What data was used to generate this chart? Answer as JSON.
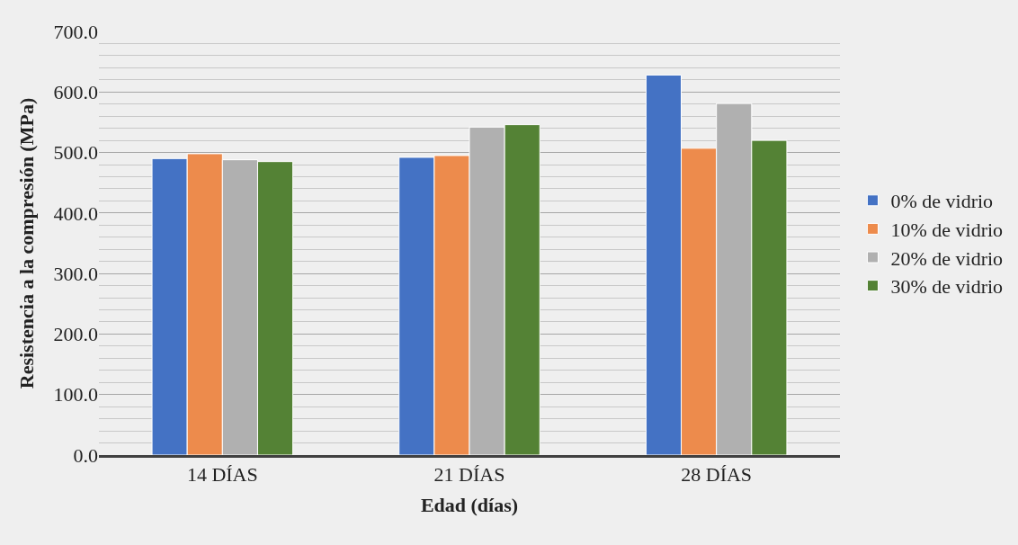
{
  "chart_data": {
    "type": "bar",
    "xlabel": "Edad (días)",
    "ylabel": "Resistencia a la compresión (MPa)",
    "categories": [
      "14 DÍAS",
      "21 DÍAS",
      "28 DÍAS"
    ],
    "series": [
      {
        "name": "0% de vidrio",
        "color": "#4472c4",
        "values": [
          490,
          492,
          628
        ]
      },
      {
        "name": "10% de vidrio",
        "color": "#ed8b4c",
        "values": [
          498,
          495,
          507
        ]
      },
      {
        "name": "20% de vidrio",
        "color": "#b0b0b0",
        "values": [
          488,
          542,
          581
        ]
      },
      {
        "name": "30% de vidrio",
        "color": "#548235",
        "values": [
          485,
          546,
          520
        ]
      }
    ],
    "ylim": [
      0,
      700
    ],
    "yticks": [
      {
        "value": 0,
        "label": "0.0"
      },
      {
        "value": 100,
        "label": "100.0"
      },
      {
        "value": 200,
        "label": "200.0"
      },
      {
        "value": 300,
        "label": "300.0"
      },
      {
        "value": 400,
        "label": "400.0"
      },
      {
        "value": 500,
        "label": "500.0"
      },
      {
        "value": 600,
        "label": "600.0"
      },
      {
        "value": 700,
        "label": "700.0"
      }
    ],
    "grid": "y",
    "legend": "right"
  }
}
